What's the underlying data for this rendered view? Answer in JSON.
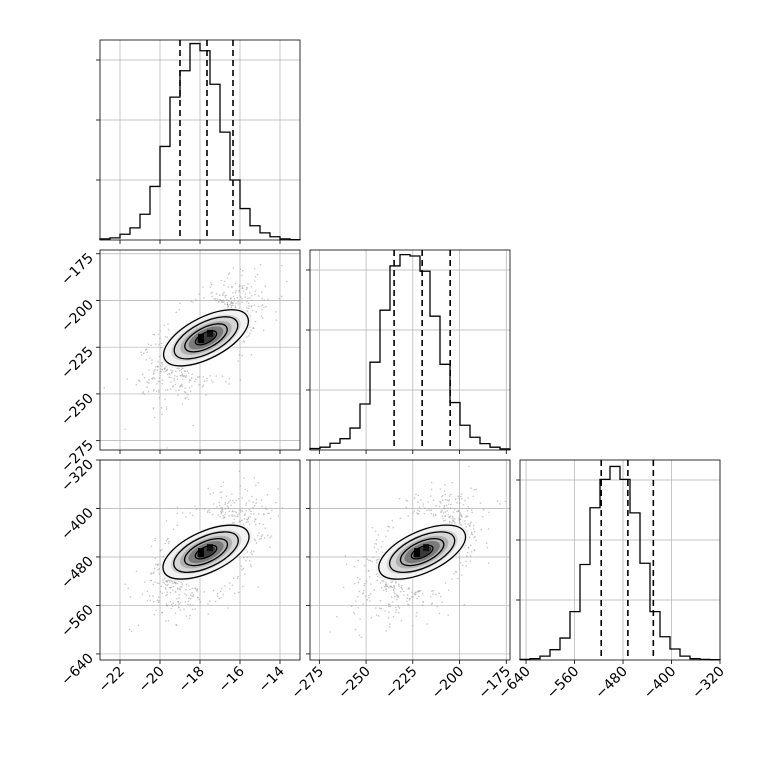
{
  "chart_data": {
    "type": "corner",
    "title": "",
    "grid": true,
    "params": [
      {
        "label": "",
        "range": [
          -23,
          -13
        ],
        "ticks": [
          -22,
          -20,
          -18,
          -16,
          -14
        ],
        "tick_labels": [
          "−22",
          "−20",
          "−18",
          "−16",
          "−14"
        ],
        "mean": -17.7,
        "sd": 1.2,
        "quantiles": [
          -19.0,
          -17.65,
          -16.35
        ],
        "hist_bins": 20,
        "hist_counts": [
          3,
          6,
          16,
          34,
          72,
          150,
          262,
          400,
          474,
          550,
          530,
          436,
          302,
          168,
          88,
          40,
          20,
          9,
          3,
          1
        ],
        "hist_ymax": 560
      },
      {
        "label": "",
        "range": [
          -280,
          -173
        ],
        "ticks": [
          -275,
          -250,
          -225,
          -200,
          -175
        ],
        "tick_labels": [
          "−275",
          "−250",
          "−225",
          "−200",
          "−175"
        ],
        "mean": -220.0,
        "sd": 13.0,
        "quantiles": [
          -235.0,
          -220.0,
          -205.0
        ],
        "hist_bins": 20,
        "hist_counts": [
          4,
          8,
          19,
          32,
          62,
          130,
          248,
          395,
          520,
          552,
          548,
          505,
          378,
          242,
          134,
          70,
          36,
          18,
          8,
          3
        ],
        "hist_ymax": 565
      },
      {
        "label": "",
        "range": [
          -650,
          -320
        ],
        "ticks": [
          -640,
          -560,
          -480,
          -400,
          -320
        ],
        "tick_labels": [
          "−640",
          "−560",
          "−480",
          "−400",
          "−320"
        ],
        "mean": -472.0,
        "sd": 40.0,
        "quantiles": [
          -516.0,
          -472.0,
          -430.0
        ],
        "hist_bins": 20,
        "hist_counts": [
          2,
          4,
          12,
          32,
          68,
          150,
          296,
          472,
          560,
          600,
          560,
          456,
          300,
          150,
          72,
          34,
          12,
          4,
          2,
          1
        ],
        "hist_ymax": 620
      }
    ],
    "pairs": [
      {
        "x": 0,
        "y": 1,
        "rho": 0.58,
        "y_ticks": [
          -175,
          -200,
          -225,
          -250,
          -275
        ],
        "y_tick_labels": [
          "−175",
          "−200",
          "−225",
          "−250",
          "−275"
        ]
      },
      {
        "x": 0,
        "y": 2,
        "rho": 0.52,
        "y_ticks": [
          -320,
          -400,
          -480,
          -560,
          -640
        ],
        "y_tick_labels": [
          "−320",
          "−400",
          "−480",
          "−560",
          "−640"
        ]
      },
      {
        "x": 1,
        "y": 2,
        "rho": 0.52,
        "y_ticks": [
          -320,
          -400,
          -480,
          -560,
          -640
        ],
        "y_tick_labels": [
          "−320",
          "−400",
          "−480",
          "−560",
          "−640"
        ]
      }
    ],
    "contour_levels_sigma": [
      0.5,
      1.0,
      1.5,
      2.0
    ],
    "colors": {
      "line": "#000000",
      "grid": "#b0b0b0",
      "points": "#9a9a9a"
    }
  }
}
